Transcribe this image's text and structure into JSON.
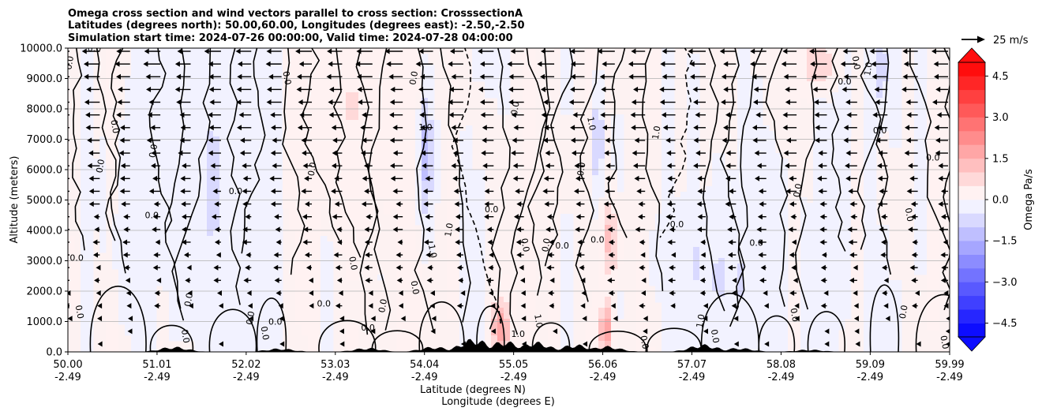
{
  "chart_data": {
    "type": "contour",
    "title_lines": [
      "Omega cross section and wind vectors parallel to cross section: CrosssectionA",
      "Latitudes (degrees north): 50.00,60.00, Longitudes (degrees east): -2.50,-2.50",
      "Simulation start time: 2024-07-26 00:00:00, Valid time: 2024-07-28 04:00:00"
    ],
    "xlabel_lat": "Latitude (degrees N)",
    "xlabel_lon": "Longitude (degrees E)",
    "ylabel": "Altitude (meters)",
    "xlim": [
      50.0,
      59.99
    ],
    "ylim": [
      0,
      10000
    ],
    "x_ticks": [
      {
        "lat": 50.0,
        "lat_label": "50.00",
        "lon_label": "-2.49"
      },
      {
        "lat": 51.01,
        "lat_label": "51.01",
        "lon_label": "-2.49"
      },
      {
        "lat": 52.02,
        "lat_label": "52.02",
        "lon_label": "-2.49"
      },
      {
        "lat": 53.03,
        "lat_label": "53.03",
        "lon_label": "-2.49"
      },
      {
        "lat": 54.04,
        "lat_label": "54.04",
        "lon_label": "-2.49"
      },
      {
        "lat": 55.05,
        "lat_label": "55.05",
        "lon_label": "-2.49"
      },
      {
        "lat": 56.06,
        "lat_label": "56.06",
        "lon_label": "-2.49"
      },
      {
        "lat": 57.07,
        "lat_label": "57.07",
        "lon_label": "-2.49"
      },
      {
        "lat": 58.08,
        "lat_label": "58.08",
        "lon_label": "-2.49"
      },
      {
        "lat": 59.09,
        "lat_label": "59.09",
        "lon_label": "-2.49"
      },
      {
        "lat": 59.99,
        "lat_label": "59.99",
        "lon_label": "-2.49"
      }
    ],
    "y_ticks": [
      {
        "value": 0,
        "label": "0.0"
      },
      {
        "value": 1000,
        "label": "1000.0"
      },
      {
        "value": 2000,
        "label": "2000.0"
      },
      {
        "value": 3000,
        "label": "3000.0"
      },
      {
        "value": 4000,
        "label": "4000.0"
      },
      {
        "value": 5000,
        "label": "5000.0"
      },
      {
        "value": 6000,
        "label": "6000.0"
      },
      {
        "value": 7000,
        "label": "7000.0"
      },
      {
        "value": 8000,
        "label": "8000.0"
      },
      {
        "value": 9000,
        "label": "9000.0"
      },
      {
        "value": 10000,
        "label": "10000.0"
      }
    ],
    "grid": "horizontal",
    "colorbar": {
      "label": "Omega Pa/s",
      "range": [
        -5.0,
        5.0
      ],
      "step": 0.5,
      "extend": "both",
      "cmap": "bwr",
      "ticks": [
        {
          "value": 4.5,
          "label": "4.5"
        },
        {
          "value": 3.0,
          "label": "3.0"
        },
        {
          "value": 1.5,
          "label": "1.5"
        },
        {
          "value": 0.0,
          "label": "0.0"
        },
        {
          "value": -1.5,
          "label": "−1.5"
        },
        {
          "value": -3.0,
          "label": "−3.0"
        },
        {
          "value": -4.5,
          "label": "−4.5"
        }
      ]
    },
    "quiver_key": {
      "label": "25 m/s",
      "speed": 25
    },
    "omega_features": [
      {
        "lat": 54.05,
        "z": 6500,
        "amp": -1.3,
        "sx": 0.06,
        "sz": 1400
      },
      {
        "lat": 56.0,
        "z": 7000,
        "amp": -1.1,
        "sx": 0.05,
        "sz": 1300
      },
      {
        "lat": 54.9,
        "z": 800,
        "amp": 1.8,
        "sx": 0.08,
        "sz": 700
      },
      {
        "lat": 56.1,
        "z": 700,
        "amp": 2.0,
        "sx": 0.05,
        "sz": 600
      },
      {
        "lat": 56.15,
        "z": 3700,
        "amp": 1.2,
        "sx": 0.06,
        "sz": 900
      },
      {
        "lat": 58.5,
        "z": 9500,
        "amp": 1.2,
        "sx": 0.12,
        "sz": 600
      },
      {
        "lat": 59.2,
        "z": 9300,
        "amp": -0.9,
        "sx": 0.06,
        "sz": 800
      },
      {
        "lat": 51.5,
        "z": 5500,
        "amp": -0.5,
        "sx": 0.6,
        "sz": 3500
      },
      {
        "lat": 57.5,
        "z": 2500,
        "amp": -0.5,
        "sx": 0.5,
        "sz": 1800
      },
      {
        "lat": 53.2,
        "z": 8000,
        "amp": 0.4,
        "sx": 0.5,
        "sz": 2500
      }
    ],
    "contour_labels": [
      {
        "lat": 50.05,
        "z": 9500,
        "text": "0.0"
      },
      {
        "lat": 50.3,
        "z": 9900,
        "text": "0.0"
      },
      {
        "lat": 50.5,
        "z": 7400,
        "text": "0.0"
      },
      {
        "lat": 50.4,
        "z": 6100,
        "text": "0.0"
      },
      {
        "lat": 50.1,
        "z": 3000,
        "text": "0.0"
      },
      {
        "lat": 50.1,
        "z": 1300,
        "text": "0.0"
      },
      {
        "lat": 51.0,
        "z": 6600,
        "text": "0.0"
      },
      {
        "lat": 50.95,
        "z": 4400,
        "text": "0.0"
      },
      {
        "lat": 51.3,
        "z": 500,
        "text": "0.0"
      },
      {
        "lat": 51.4,
        "z": 1700,
        "text": "0.0"
      },
      {
        "lat": 51.9,
        "z": 5200,
        "text": "0.0"
      },
      {
        "lat": 52.2,
        "z": 600,
        "text": "0.0"
      },
      {
        "lat": 52.1,
        "z": 1100,
        "text": "0.0"
      },
      {
        "lat": 52.35,
        "z": 900,
        "text": "0.0"
      },
      {
        "lat": 52.45,
        "z": 9000,
        "text": "0.0"
      },
      {
        "lat": 52.8,
        "z": 6000,
        "text": "0.0"
      },
      {
        "lat": 52.9,
        "z": 1500,
        "text": "0.0"
      },
      {
        "lat": 53.2,
        "z": 2900,
        "text": "0.0"
      },
      {
        "lat": 53.6,
        "z": 1500,
        "text": "0.0"
      },
      {
        "lat": 53.4,
        "z": 700,
        "text": "0.0"
      },
      {
        "lat": 53.9,
        "z": 2100,
        "text": "0.0"
      },
      {
        "lat": 53.95,
        "z": 9000,
        "text": "0.0"
      },
      {
        "lat": 54.05,
        "z": 7300,
        "text": "1.0"
      },
      {
        "lat": 54.1,
        "z": 3300,
        "text": "1.0"
      },
      {
        "lat": 54.35,
        "z": 4000,
        "text": "1.0"
      },
      {
        "lat": 54.8,
        "z": 4600,
        "text": "0.0"
      },
      {
        "lat": 55.15,
        "z": 3500,
        "text": "0.0"
      },
      {
        "lat": 55.45,
        "z": 3500,
        "text": "0.0"
      },
      {
        "lat": 55.1,
        "z": 500,
        "text": "1.0"
      },
      {
        "lat": 55.3,
        "z": 1000,
        "text": "1.0"
      },
      {
        "lat": 55.1,
        "z": 8000,
        "text": "0.0"
      },
      {
        "lat": 55.6,
        "z": 3400,
        "text": "0.0"
      },
      {
        "lat": 55.9,
        "z": 7500,
        "text": "1.0"
      },
      {
        "lat": 55.85,
        "z": 6000,
        "text": "0.0"
      },
      {
        "lat": 56.0,
        "z": 3600,
        "text": "0.0"
      },
      {
        "lat": 56.5,
        "z": 300,
        "text": "0.0"
      },
      {
        "lat": 56.7,
        "z": 7200,
        "text": "1.0"
      },
      {
        "lat": 56.9,
        "z": 4100,
        "text": "0.0"
      },
      {
        "lat": 57.3,
        "z": 500,
        "text": "0.0"
      },
      {
        "lat": 57.2,
        "z": 1000,
        "text": "1.0"
      },
      {
        "lat": 57.8,
        "z": 3500,
        "text": "0.0"
      },
      {
        "lat": 58.2,
        "z": 1200,
        "text": "0.0"
      },
      {
        "lat": 58.3,
        "z": 5300,
        "text": "0.0"
      },
      {
        "lat": 58.8,
        "z": 8800,
        "text": "0.0"
      },
      {
        "lat": 58.9,
        "z": 9500,
        "text": "0.0"
      },
      {
        "lat": 59.1,
        "z": 9300,
        "text": "1.0"
      },
      {
        "lat": 59.2,
        "z": 7200,
        "text": "0.0"
      },
      {
        "lat": 59.5,
        "z": 4500,
        "text": "0.0"
      },
      {
        "lat": 59.5,
        "z": 1300,
        "text": "0.0"
      },
      {
        "lat": 59.8,
        "z": 6300,
        "text": "0.0"
      },
      {
        "lat": 59.9,
        "z": 300,
        "text": "0.0"
      }
    ]
  }
}
